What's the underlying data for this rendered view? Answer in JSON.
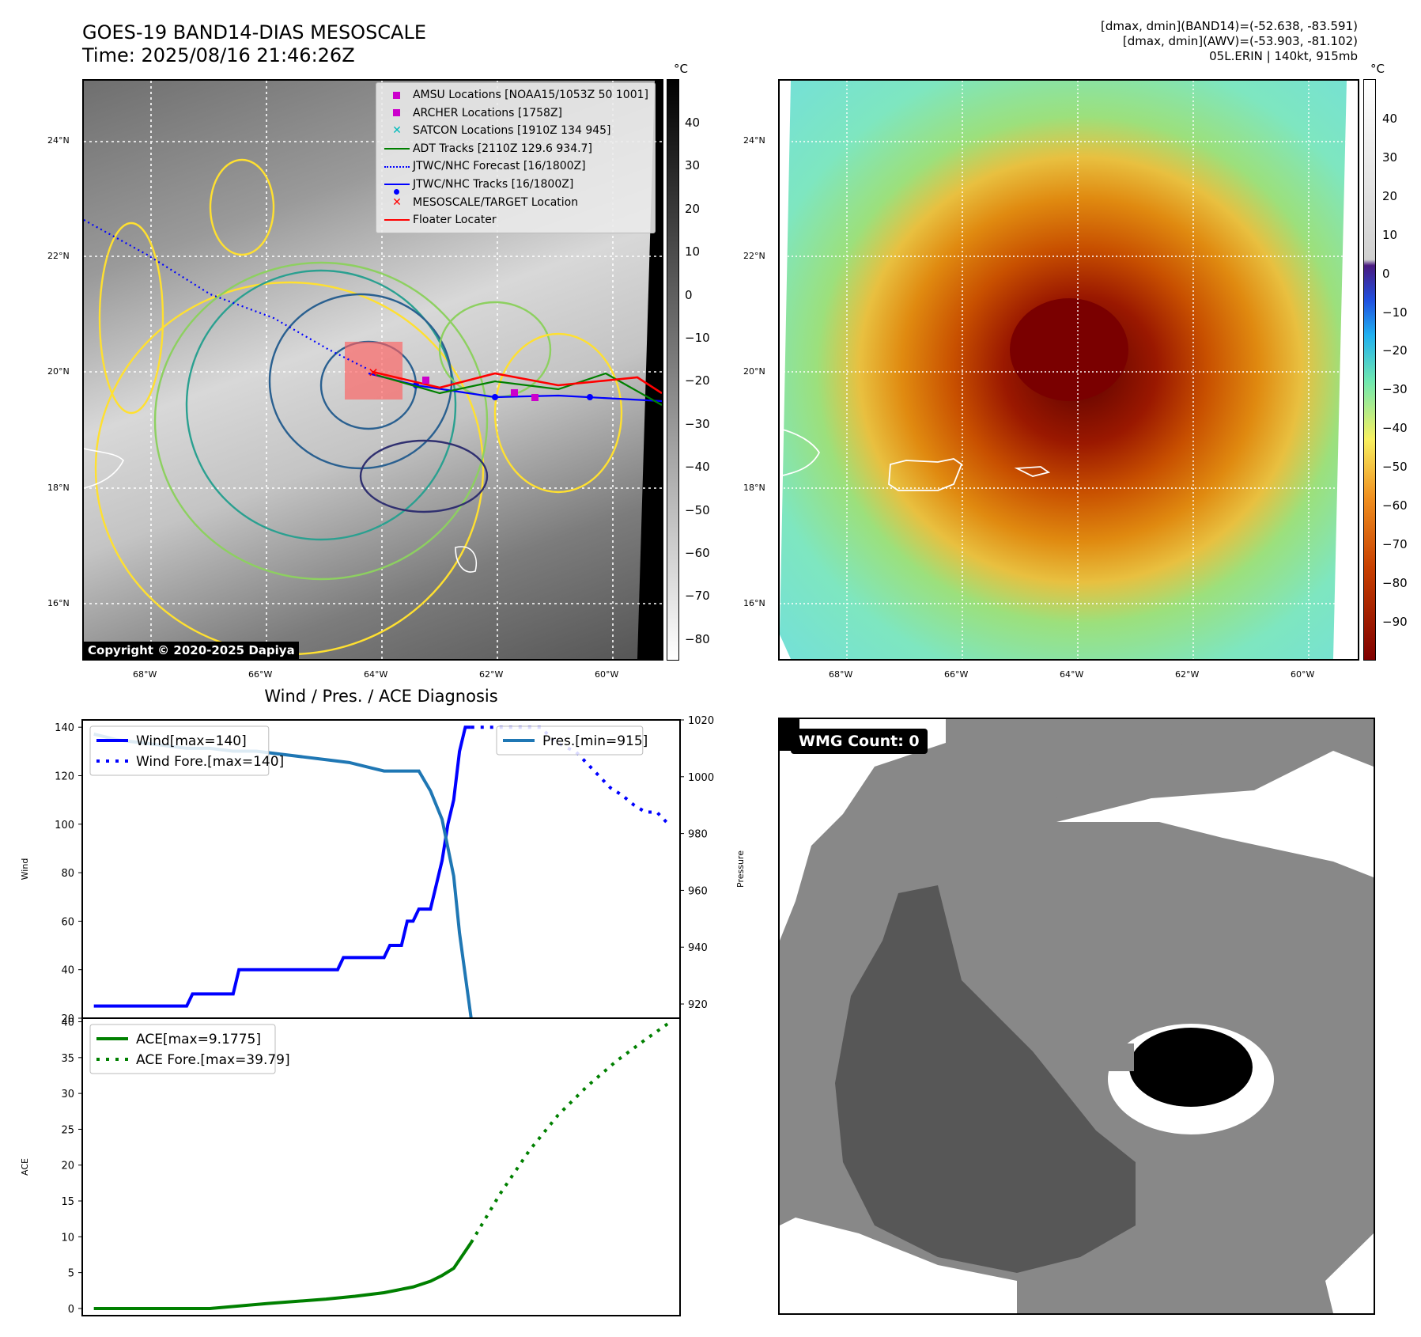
{
  "header": {
    "title_line1": "GOES-19 BAND14-DIAS MESOSCALE",
    "title_line2": "Time: 2025/08/16 21:46:26Z",
    "info_line1": "[dmax, dmin](BAND14)=(-52.638, -83.591)",
    "info_line2": "[dmax, dmin](AWV)=(-53.903, -81.102)",
    "info_line3": "05L.ERIN | 140kt, 915mb"
  },
  "map_left": {
    "copyright": "Copyright © 2020-2025 Dapiya",
    "lat_labels": [
      "24°N",
      "22°N",
      "20°N",
      "18°N",
      "16°N"
    ],
    "lon_labels": [
      "68°W",
      "66°W",
      "64°W",
      "62°W",
      "60°W"
    ],
    "colorbar_unit": "°C",
    "colorbar_ticks": [
      "40",
      "30",
      "20",
      "10",
      "0",
      "−10",
      "−20",
      "−30",
      "−40",
      "−50",
      "−60",
      "−70",
      "−80"
    ],
    "legend": [
      {
        "label": "AMSU Locations [NOAA15/1053Z 50 1001]",
        "symbol": "square",
        "color": "#cc00cc"
      },
      {
        "label": "ARCHER Locations [1758Z]",
        "symbol": "square",
        "color": "#cc00cc"
      },
      {
        "label": "SATCON Locations [1910Z 134 945]",
        "symbol": "x",
        "color": "#00bbbb"
      },
      {
        "label": "ADT Tracks [2110Z 129.6 934.7]",
        "symbol": "line",
        "color": "#008000"
      },
      {
        "label": "JTWC/NHC Forecast [16/1800Z]",
        "symbol": "dotted",
        "color": "#0000ff"
      },
      {
        "label": "JTWC/NHC Tracks [16/1800Z]",
        "symbol": "line-dot",
        "color": "#0000ff"
      },
      {
        "label": "MESOSCALE/TARGET Location",
        "symbol": "x",
        "color": "#ff0000"
      },
      {
        "label": "Floater Locater",
        "symbol": "line",
        "color": "#ff0000"
      }
    ]
  },
  "map_right": {
    "lat_labels": [
      "24°N",
      "22°N",
      "20°N",
      "18°N",
      "16°N"
    ],
    "lon_labels": [
      "68°W",
      "66°W",
      "64°W",
      "62°W",
      "60°W"
    ],
    "colorbar_unit": "°C",
    "colorbar_ticks": [
      "40",
      "30",
      "20",
      "10",
      "0",
      "−10",
      "−20",
      "−30",
      "−40",
      "−50",
      "−60",
      "−70",
      "−80",
      "−90"
    ]
  },
  "diagnosis_title": "Wind / Pres. / ACE Diagnosis",
  "wmg": {
    "badge": "WMG Count: 0"
  },
  "chart_data": [
    {
      "type": "line",
      "ylabel": "Wind",
      "y2label": "Pressure",
      "ylim": [
        20,
        143
      ],
      "y2lim": [
        915,
        1020
      ],
      "yticks": [
        20,
        40,
        60,
        80,
        100,
        120,
        140
      ],
      "y2ticks": [
        920,
        940,
        960,
        980,
        1000,
        1020
      ],
      "legend_left": [
        "Wind[max=140]",
        "Wind Fore.[max=140]"
      ],
      "legend_right": [
        "Pres.[min=915]"
      ],
      "series": [
        {
          "name": "Wind[max=140]",
          "style": "solid",
          "color": "#0000ff",
          "axis": "left",
          "x": [
            0,
            1,
            2,
            3,
            4,
            5,
            6,
            7,
            8,
            9,
            10,
            11,
            12,
            13,
            14,
            15,
            16,
            17,
            18,
            19,
            20,
            21,
            22,
            23,
            24,
            25,
            26,
            27,
            28,
            29,
            30,
            31,
            32,
            33,
            34,
            35,
            36,
            37,
            38,
            39,
            40,
            41,
            42,
            43,
            44,
            45,
            46,
            47,
            48,
            49,
            50,
            51,
            52,
            53,
            54,
            55,
            56,
            57,
            58,
            59,
            60,
            61,
            62,
            63,
            64,
            65
          ],
          "values": [
            25,
            25,
            25,
            25,
            25,
            25,
            25,
            25,
            25,
            25,
            25,
            25,
            25,
            25,
            25,
            25,
            25,
            30,
            30,
            30,
            30,
            30,
            30,
            30,
            30,
            40,
            40,
            40,
            40,
            40,
            40,
            40,
            40,
            40,
            40,
            40,
            40,
            40,
            40,
            40,
            40,
            40,
            40,
            45,
            45,
            45,
            45,
            45,
            45,
            45,
            45,
            50,
            50,
            50,
            60,
            60,
            65,
            65,
            65,
            75,
            85,
            100,
            110,
            130,
            140,
            140
          ]
        },
        {
          "name": "Wind Fore.[max=140]",
          "style": "dotted",
          "color": "#0000ff",
          "axis": "left",
          "x": [
            65,
            67,
            69,
            71,
            73,
            75,
            77,
            79,
            81,
            83,
            85,
            87,
            89,
            91,
            93,
            95,
            97,
            99
          ],
          "values": [
            140,
            140,
            140,
            140,
            140,
            140,
            140,
            135,
            132,
            130,
            125,
            120,
            115,
            112,
            108,
            105,
            105,
            100
          ]
        }
      ]
    },
    {
      "type": "line",
      "series": [
        {
          "name": "Pres.[min=915]",
          "style": "solid",
          "color": "#1f77b4",
          "axis": "right",
          "x": [
            0,
            4,
            8,
            12,
            16,
            20,
            24,
            28,
            32,
            36,
            40,
            44,
            48,
            50,
            52,
            54,
            56,
            58,
            60,
            62,
            63,
            64,
            65
          ],
          "values": [
            1015,
            1013,
            1012,
            1011,
            1010,
            1010,
            1009,
            1009,
            1008,
            1007,
            1006,
            1005,
            1003,
            1002,
            1002,
            1002,
            1002,
            995,
            985,
            965,
            945,
            930,
            915
          ]
        }
      ]
    },
    {
      "type": "line",
      "ylabel": "ACE",
      "ylim": [
        -1,
        40.5
      ],
      "yticks": [
        0,
        5,
        10,
        15,
        20,
        25,
        30,
        35,
        40
      ],
      "legend": [
        "ACE[max=9.1775]",
        "ACE Fore.[max=39.79]"
      ],
      "series": [
        {
          "name": "ACE[max=9.1775]",
          "style": "solid",
          "color": "#008000",
          "x": [
            0,
            10,
            20,
            30,
            40,
            45,
            50,
            55,
            58,
            60,
            62,
            65
          ],
          "values": [
            0,
            0,
            0,
            0.7,
            1.3,
            1.7,
            2.2,
            3.0,
            3.8,
            4.6,
            5.6,
            9.18
          ]
        },
        {
          "name": "ACE Fore.[max=39.79]",
          "style": "dotted",
          "color": "#008000",
          "x": [
            65,
            70,
            75,
            80,
            85,
            90,
            95,
            99
          ],
          "values": [
            9.18,
            16,
            22,
            27,
            31,
            34.5,
            37.5,
            39.79
          ]
        }
      ]
    }
  ]
}
